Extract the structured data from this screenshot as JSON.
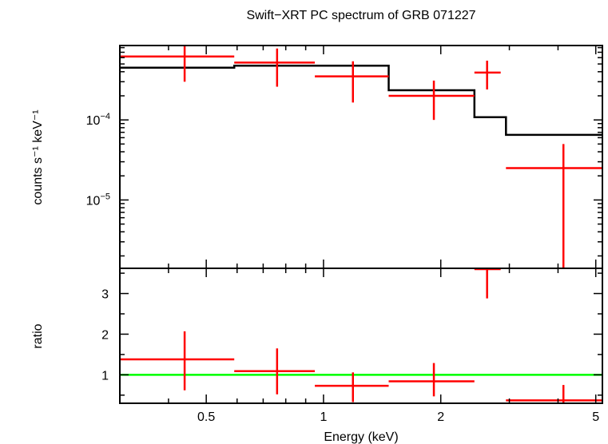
{
  "chart_data": {
    "type": "scatter",
    "title": "Swift−XRT PC spectrum of GRB 071227",
    "xlabel": "Energy (keV)",
    "x_scale": "log",
    "xlim": [
      0.3,
      5.2
    ],
    "x_ticks": [
      {
        "v": 0.5,
        "label": "0.5"
      },
      {
        "v": 1,
        "label": "1"
      },
      {
        "v": 2,
        "label": "2"
      },
      {
        "v": 5,
        "label": "5"
      }
    ],
    "colors": {
      "data": "#ff0000",
      "model": "#000000",
      "unity": "#00ff00",
      "axes": "#000000"
    },
    "top_panel": {
      "ylabel": "counts s⁻¹ keV⁻¹",
      "y_scale": "log",
      "ylim": [
        1.4e-06,
        0.00085
      ],
      "y_ticks": [
        {
          "v": 0.0001,
          "base": "10",
          "exp": "−4"
        },
        {
          "v": 1e-05,
          "base": "10",
          "exp": "−5"
        }
      ],
      "data": [
        {
          "xlo": 0.3,
          "xhi": 0.59,
          "x": 0.44,
          "y": 0.00062,
          "ylo": 0.0003,
          "yhi": 0.0009
        },
        {
          "xlo": 0.59,
          "xhi": 0.95,
          "x": 0.76,
          "y": 0.00052,
          "ylo": 0.00026,
          "yhi": 0.00078
        },
        {
          "xlo": 0.95,
          "xhi": 1.47,
          "x": 1.19,
          "y": 0.00035,
          "ylo": 0.000165,
          "yhi": 0.00054
        },
        {
          "xlo": 1.47,
          "xhi": 2.44,
          "x": 1.92,
          "y": 0.0002,
          "ylo": 0.0001,
          "yhi": 0.00031
        },
        {
          "xlo": 2.44,
          "xhi": 2.85,
          "x": 2.63,
          "y": 0.00039,
          "ylo": 0.00024,
          "yhi": 0.00055
        },
        {
          "xlo": 2.94,
          "xhi": 5.2,
          "x": 4.13,
          "y": 2.5e-05,
          "ylo": 1.4e-06,
          "yhi": 5e-05
        }
      ],
      "model": [
        {
          "xlo": 0.3,
          "xhi": 0.59,
          "y": 0.00045
        },
        {
          "xlo": 0.59,
          "xhi": 0.95,
          "y": 0.000475
        },
        {
          "xlo": 0.95,
          "xhi": 1.47,
          "y": 0.000475
        },
        {
          "xlo": 1.47,
          "xhi": 2.44,
          "y": 0.000235
        },
        {
          "xlo": 2.44,
          "xhi": 2.94,
          "y": 0.000108
        },
        {
          "xlo": 2.94,
          "xhi": 5.2,
          "y": 6.5e-05
        }
      ]
    },
    "bottom_panel": {
      "ylabel": "ratio",
      "y_scale": "linear",
      "ylim": [
        0.3,
        3.62
      ],
      "y_ticks": [
        {
          "v": 1,
          "label": "1"
        },
        {
          "v": 2,
          "label": "2"
        },
        {
          "v": 3,
          "label": "3"
        }
      ],
      "unity_line": 1,
      "data": [
        {
          "xlo": 0.3,
          "xhi": 0.59,
          "x": 0.44,
          "y": 1.38,
          "ylo": 0.62,
          "yhi": 2.07
        },
        {
          "xlo": 0.59,
          "xhi": 0.95,
          "x": 0.76,
          "y": 1.09,
          "ylo": 0.52,
          "yhi": 1.65
        },
        {
          "xlo": 0.95,
          "xhi": 1.47,
          "x": 1.19,
          "y": 0.73,
          "ylo": 0.33,
          "yhi": 1.06
        },
        {
          "xlo": 1.47,
          "xhi": 2.44,
          "x": 1.92,
          "y": 0.84,
          "ylo": 0.47,
          "yhi": 1.29
        },
        {
          "xlo": 2.44,
          "xhi": 2.85,
          "x": 2.63,
          "y": 3.6,
          "ylo": 2.88,
          "yhi": 3.62
        },
        {
          "xlo": 2.94,
          "xhi": 5.2,
          "x": 4.13,
          "y": 0.37,
          "ylo": 0.3,
          "yhi": 0.75
        }
      ]
    }
  }
}
